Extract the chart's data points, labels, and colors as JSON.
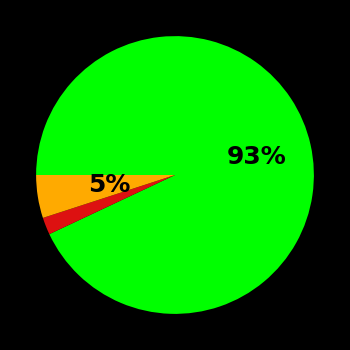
{
  "slices": [
    93,
    2,
    5
  ],
  "colors": [
    "#00ff00",
    "#dd1111",
    "#ffaa00"
  ],
  "labels": [
    "93%",
    "",
    "5%"
  ],
  "background_color": "#000000",
  "text_color": "#000000",
  "figsize": [
    3.5,
    3.5
  ],
  "dpi": 100,
  "font_size": 18,
  "startangle": 180
}
